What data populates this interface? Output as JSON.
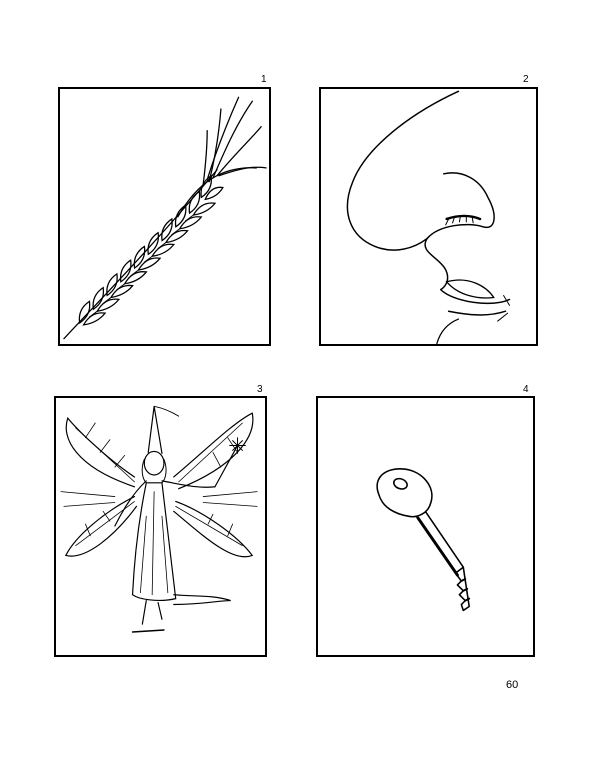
{
  "panels": [
    {
      "number": "1",
      "icon": "wheat-ear-icon"
    },
    {
      "number": "2",
      "icon": "nose-icon"
    },
    {
      "number": "3",
      "icon": "fairy-icon"
    },
    {
      "number": "4",
      "icon": "key-icon"
    }
  ],
  "page_number": "60"
}
